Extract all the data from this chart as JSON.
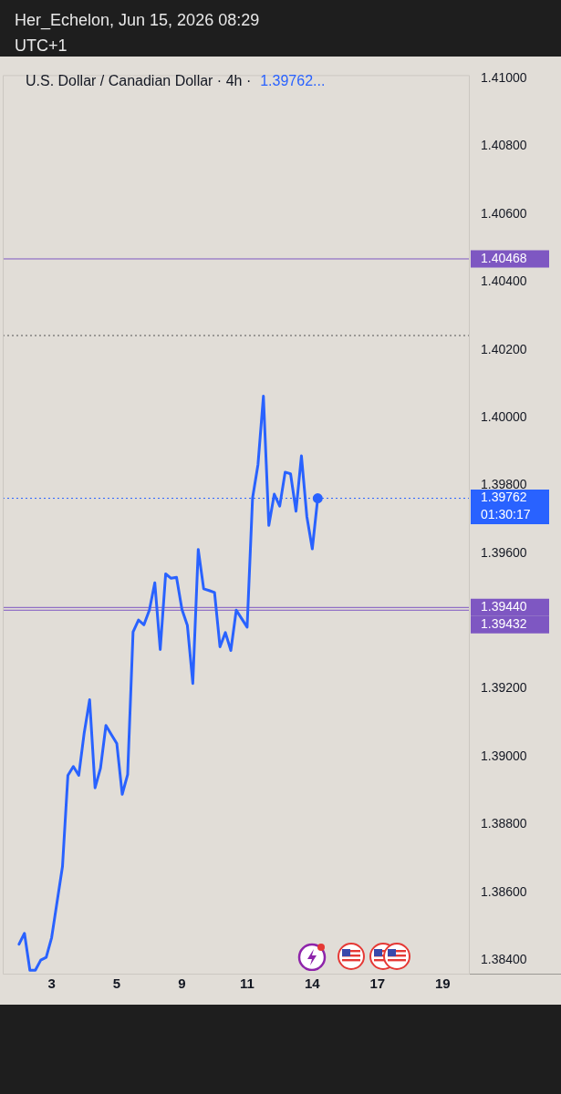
{
  "chart_data": {
    "type": "line",
    "title": "Her_Echelon, Jun 15, 2026 08:29 UTC+1",
    "subtitle": "U.S. Dollar / Canadian Dollar · 4h ·",
    "categories": [
      null,
      null,
      null,
      null,
      null,
      null,
      null,
      null,
      null,
      "3",
      null,
      null,
      null,
      null,
      null,
      null,
      null,
      null,
      null,
      null,
      null,
      "5",
      null,
      null,
      null,
      null,
      null,
      null,
      null,
      null,
      null,
      null,
      null,
      "9",
      null,
      null,
      null,
      null,
      null,
      null,
      null,
      null,
      null,
      null,
      null,
      "11",
      null,
      null,
      null,
      null,
      null,
      null,
      null,
      null,
      null,
      null,
      null,
      "14",
      null,
      null,
      null,
      null,
      null,
      null,
      null,
      null,
      null,
      null,
      null,
      "17",
      null,
      null,
      null,
      null,
      null,
      null,
      null,
      null,
      null,
      null,
      null,
      "19",
      null,
      null,
      null,
      null,
      null
    ],
    "series": [
      {
        "color": "#2962ff",
        "values": [
          null,
          null,
          null,
          1.38447,
          1.38479,
          1.3837,
          1.3837,
          1.384,
          1.38408,
          1.38466,
          1.38571,
          1.38676,
          1.38945,
          1.38971,
          1.38945,
          1.3907,
          1.39168,
          1.38908,
          1.38966,
          1.39092,
          1.39065,
          1.39039,
          1.38889,
          1.38947,
          1.39368,
          1.39403,
          1.39389,
          1.39432,
          1.39513,
          1.39316,
          1.39539,
          1.39526,
          1.39529,
          1.39434,
          1.39387,
          1.39216,
          1.39611,
          1.39495,
          1.3949,
          1.39484,
          1.39324,
          1.39366,
          1.39313,
          1.39432,
          1.39407,
          1.39382,
          1.39763,
          1.39861,
          1.40063,
          1.39682,
          1.39774,
          1.39739,
          1.39839,
          1.39834,
          1.39724,
          1.39887,
          1.39708,
          1.39613,
          1.39762,
          null,
          null,
          null,
          null,
          null,
          null,
          null,
          null,
          null,
          null,
          null,
          null,
          null,
          null,
          null,
          null,
          null,
          null,
          null,
          null,
          null,
          null,
          null,
          null,
          null,
          null,
          null,
          null
        ]
      }
    ],
    "ylim": [
      1.3836,
      1.4101
    ],
    "yticks": [
      {
        "value": 1.384,
        "label": "1.38400"
      },
      {
        "value": 1.386,
        "label": "1.38600"
      },
      {
        "value": 1.388,
        "label": "1.38800"
      },
      {
        "value": 1.39,
        "label": "1.39000"
      },
      {
        "value": 1.392,
        "label": "1.39200"
      },
      {
        "value": 1.396,
        "label": "1.39600"
      },
      {
        "value": 1.398,
        "label": "1.39800"
      },
      {
        "value": 1.4,
        "label": "1.40000"
      },
      {
        "value": 1.402,
        "label": "1.40200"
      },
      {
        "value": 1.404,
        "label": "1.40400"
      },
      {
        "value": 1.406,
        "label": "1.40600"
      },
      {
        "value": 1.408,
        "label": "1.40800"
      },
      {
        "value": 1.41,
        "label": "1.41000"
      }
    ],
    "ref_lines": [
      {
        "axis": "y",
        "value": 1.40468,
        "label": "1.40468",
        "color": "#7e57c2",
        "line_style": "solid"
      },
      {
        "axis": "y",
        "value": 1.40242,
        "color": "#555555",
        "line_style": "dotted"
      },
      {
        "axis": "y",
        "value": 1.39762,
        "label": "1.39762",
        "color": "#2962ff",
        "line_style": "dotted"
      },
      {
        "axis": "y",
        "value": 1.3944,
        "label": "1.39440",
        "color": "#7e57c2",
        "line_style": "solid"
      },
      {
        "axis": "y",
        "value": 1.39432,
        "label": "1.39432",
        "color": "#7e57c2",
        "line_style": "solid"
      }
    ],
    "annotations": [
      "1.39762...",
      "01:30:17"
    ],
    "line_style": "solid"
  }
}
